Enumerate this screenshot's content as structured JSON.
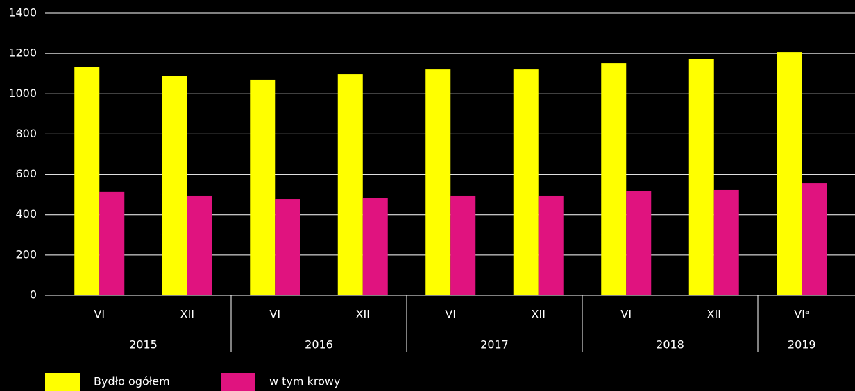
{
  "chart_data": {
    "type": "bar",
    "categories": [
      "VI",
      "XII",
      "VI",
      "XII",
      "VI",
      "XII",
      "VI",
      "XII",
      "VIᵃ"
    ],
    "x_groups": [
      {
        "label": "2015",
        "size": 2
      },
      {
        "label": "2016",
        "size": 2
      },
      {
        "label": "2017",
        "size": 2
      },
      {
        "label": "2018",
        "size": 2
      },
      {
        "label": "2019",
        "size": 1
      }
    ],
    "series": [
      {
        "name": "Bydło ogółem",
        "color": "#ffff00",
        "values": [
          1135,
          1090,
          1070,
          1097,
          1121,
          1121,
          1152,
          1173,
          1207
        ]
      },
      {
        "name": "w tym krowy",
        "color": "#e0137f",
        "values": [
          513,
          492,
          478,
          482,
          492,
          492,
          516,
          523,
          557
        ]
      }
    ],
    "ylim": [
      0,
      1400
    ],
    "yticks": [
      0,
      200,
      400,
      600,
      800,
      1000,
      1200,
      1400
    ],
    "grid": true,
    "legend": "bottom-left"
  }
}
